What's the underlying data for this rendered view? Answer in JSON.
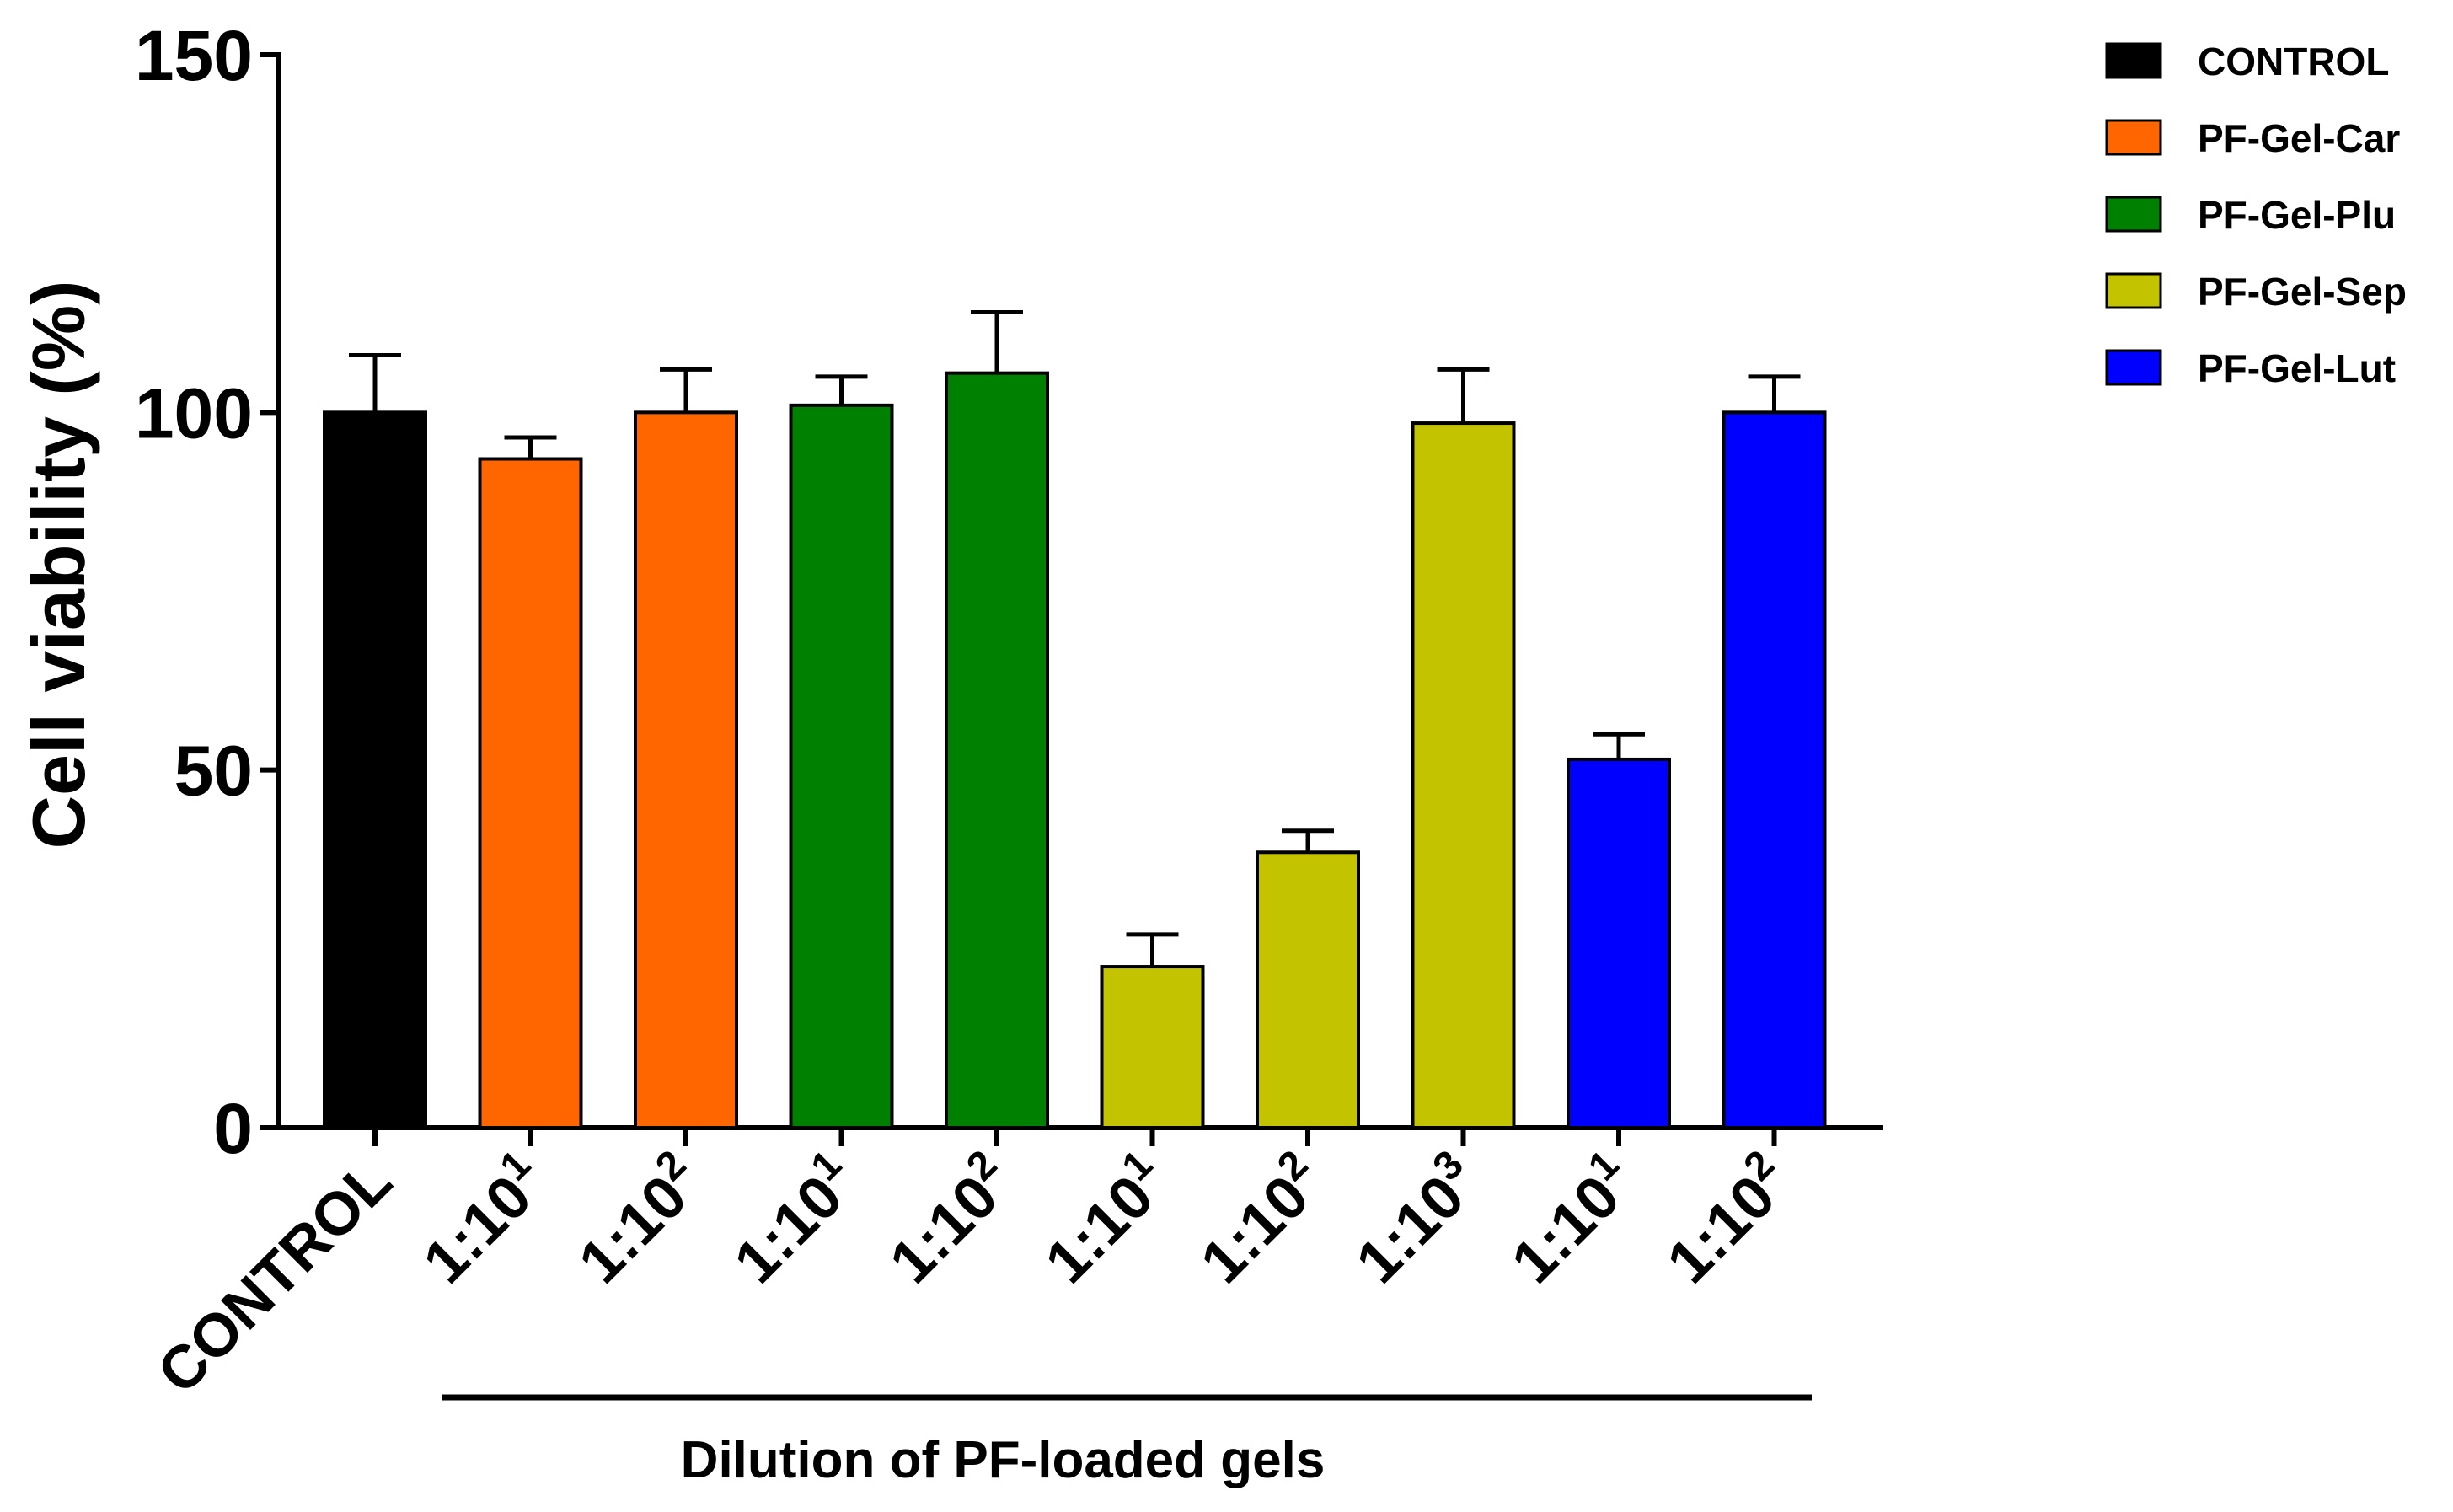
{
  "chart_data": {
    "type": "bar",
    "title": "",
    "ylabel": "Cell viability (%)",
    "xlabel": "Dilution of PF-loaded gels",
    "ylim": [
      0,
      150
    ],
    "yticks": [
      "0",
      "50",
      "100",
      "150"
    ],
    "legend_position": "top-right",
    "series": [
      {
        "name": "CONTROL",
        "color": "#000000"
      },
      {
        "name": "PF-Gel-Car",
        "color": "#ff6600"
      },
      {
        "name": "PF-Gel-Plu",
        "color": "#008000"
      },
      {
        "name": "PF-Gel-Sep",
        "color": "#c3c300"
      },
      {
        "name": "PF-Gel-Lut",
        "color": "#0000ff"
      }
    ],
    "bars": [
      {
        "label": "CONTROL",
        "base": "CONTROL",
        "exp": "",
        "series": 0,
        "value": 100,
        "error": 8
      },
      {
        "label": "1:10¹",
        "base": "1:10",
        "exp": "1",
        "series": 1,
        "value": 93.5,
        "error": 3
      },
      {
        "label": "1:10²",
        "base": "1:10",
        "exp": "2",
        "series": 1,
        "value": 100,
        "error": 6
      },
      {
        "label": "1:10¹",
        "base": "1:10",
        "exp": "1",
        "series": 2,
        "value": 101,
        "error": 4
      },
      {
        "label": "1:10²",
        "base": "1:10",
        "exp": "2",
        "series": 2,
        "value": 105.5,
        "error": 8.5
      },
      {
        "label": "1:10¹",
        "base": "1:10",
        "exp": "1",
        "series": 3,
        "value": 22.5,
        "error": 4.5
      },
      {
        "label": "1:10²",
        "base": "1:10",
        "exp": "2",
        "series": 3,
        "value": 38.5,
        "error": 3
      },
      {
        "label": "1:10³",
        "base": "1:10",
        "exp": "3",
        "series": 3,
        "value": 98.5,
        "error": 7.5
      },
      {
        "label": "1:10¹",
        "base": "1:10",
        "exp": "1",
        "series": 4,
        "value": 51.5,
        "error": 3.5
      },
      {
        "label": "1:10²",
        "base": "1:10",
        "exp": "2",
        "series": 4,
        "value": 100,
        "error": 5
      }
    ]
  }
}
